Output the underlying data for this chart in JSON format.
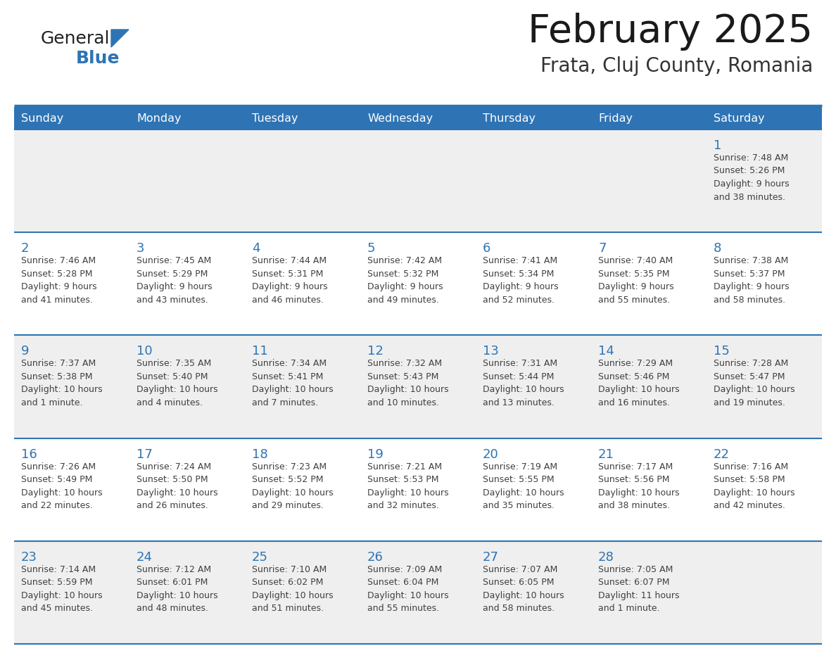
{
  "title": "February 2025",
  "subtitle": "Frata, Cluj County, Romania",
  "days_of_week": [
    "Sunday",
    "Monday",
    "Tuesday",
    "Wednesday",
    "Thursday",
    "Friday",
    "Saturday"
  ],
  "header_bg_color": "#2E74B5",
  "header_text_color": "#FFFFFF",
  "cell_bg_even": "#FFFFFF",
  "cell_bg_odd": "#EFEFEF",
  "separator_color": "#2E74B5",
  "day_number_color": "#2E74B5",
  "info_text_color": "#404040",
  "logo_general_color": "#222222",
  "logo_blue_color": "#2E74B5",
  "calendar_data": [
    {
      "day": 1,
      "col": 6,
      "row": 0,
      "sunrise": "7:48 AM",
      "sunset": "5:26 PM",
      "daylight": "9 hours and 38 minutes."
    },
    {
      "day": 2,
      "col": 0,
      "row": 1,
      "sunrise": "7:46 AM",
      "sunset": "5:28 PM",
      "daylight": "9 hours and 41 minutes."
    },
    {
      "day": 3,
      "col": 1,
      "row": 1,
      "sunrise": "7:45 AM",
      "sunset": "5:29 PM",
      "daylight": "9 hours and 43 minutes."
    },
    {
      "day": 4,
      "col": 2,
      "row": 1,
      "sunrise": "7:44 AM",
      "sunset": "5:31 PM",
      "daylight": "9 hours and 46 minutes."
    },
    {
      "day": 5,
      "col": 3,
      "row": 1,
      "sunrise": "7:42 AM",
      "sunset": "5:32 PM",
      "daylight": "9 hours and 49 minutes."
    },
    {
      "day": 6,
      "col": 4,
      "row": 1,
      "sunrise": "7:41 AM",
      "sunset": "5:34 PM",
      "daylight": "9 hours and 52 minutes."
    },
    {
      "day": 7,
      "col": 5,
      "row": 1,
      "sunrise": "7:40 AM",
      "sunset": "5:35 PM",
      "daylight": "9 hours and 55 minutes."
    },
    {
      "day": 8,
      "col": 6,
      "row": 1,
      "sunrise": "7:38 AM",
      "sunset": "5:37 PM",
      "daylight": "9 hours and 58 minutes."
    },
    {
      "day": 9,
      "col": 0,
      "row": 2,
      "sunrise": "7:37 AM",
      "sunset": "5:38 PM",
      "daylight": "10 hours and 1 minute."
    },
    {
      "day": 10,
      "col": 1,
      "row": 2,
      "sunrise": "7:35 AM",
      "sunset": "5:40 PM",
      "daylight": "10 hours and 4 minutes."
    },
    {
      "day": 11,
      "col": 2,
      "row": 2,
      "sunrise": "7:34 AM",
      "sunset": "5:41 PM",
      "daylight": "10 hours and 7 minutes."
    },
    {
      "day": 12,
      "col": 3,
      "row": 2,
      "sunrise": "7:32 AM",
      "sunset": "5:43 PM",
      "daylight": "10 hours and 10 minutes."
    },
    {
      "day": 13,
      "col": 4,
      "row": 2,
      "sunrise": "7:31 AM",
      "sunset": "5:44 PM",
      "daylight": "10 hours and 13 minutes."
    },
    {
      "day": 14,
      "col": 5,
      "row": 2,
      "sunrise": "7:29 AM",
      "sunset": "5:46 PM",
      "daylight": "10 hours and 16 minutes."
    },
    {
      "day": 15,
      "col": 6,
      "row": 2,
      "sunrise": "7:28 AM",
      "sunset": "5:47 PM",
      "daylight": "10 hours and 19 minutes."
    },
    {
      "day": 16,
      "col": 0,
      "row": 3,
      "sunrise": "7:26 AM",
      "sunset": "5:49 PM",
      "daylight": "10 hours and 22 minutes."
    },
    {
      "day": 17,
      "col": 1,
      "row": 3,
      "sunrise": "7:24 AM",
      "sunset": "5:50 PM",
      "daylight": "10 hours and 26 minutes."
    },
    {
      "day": 18,
      "col": 2,
      "row": 3,
      "sunrise": "7:23 AM",
      "sunset": "5:52 PM",
      "daylight": "10 hours and 29 minutes."
    },
    {
      "day": 19,
      "col": 3,
      "row": 3,
      "sunrise": "7:21 AM",
      "sunset": "5:53 PM",
      "daylight": "10 hours and 32 minutes."
    },
    {
      "day": 20,
      "col": 4,
      "row": 3,
      "sunrise": "7:19 AM",
      "sunset": "5:55 PM",
      "daylight": "10 hours and 35 minutes."
    },
    {
      "day": 21,
      "col": 5,
      "row": 3,
      "sunrise": "7:17 AM",
      "sunset": "5:56 PM",
      "daylight": "10 hours and 38 minutes."
    },
    {
      "day": 22,
      "col": 6,
      "row": 3,
      "sunrise": "7:16 AM",
      "sunset": "5:58 PM",
      "daylight": "10 hours and 42 minutes."
    },
    {
      "day": 23,
      "col": 0,
      "row": 4,
      "sunrise": "7:14 AM",
      "sunset": "5:59 PM",
      "daylight": "10 hours and 45 minutes."
    },
    {
      "day": 24,
      "col": 1,
      "row": 4,
      "sunrise": "7:12 AM",
      "sunset": "6:01 PM",
      "daylight": "10 hours and 48 minutes."
    },
    {
      "day": 25,
      "col": 2,
      "row": 4,
      "sunrise": "7:10 AM",
      "sunset": "6:02 PM",
      "daylight": "10 hours and 51 minutes."
    },
    {
      "day": 26,
      "col": 3,
      "row": 4,
      "sunrise": "7:09 AM",
      "sunset": "6:04 PM",
      "daylight": "10 hours and 55 minutes."
    },
    {
      "day": 27,
      "col": 4,
      "row": 4,
      "sunrise": "7:07 AM",
      "sunset": "6:05 PM",
      "daylight": "10 hours and 58 minutes."
    },
    {
      "day": 28,
      "col": 5,
      "row": 4,
      "sunrise": "7:05 AM",
      "sunset": "6:07 PM",
      "daylight": "11 hours and 1 minute."
    }
  ]
}
